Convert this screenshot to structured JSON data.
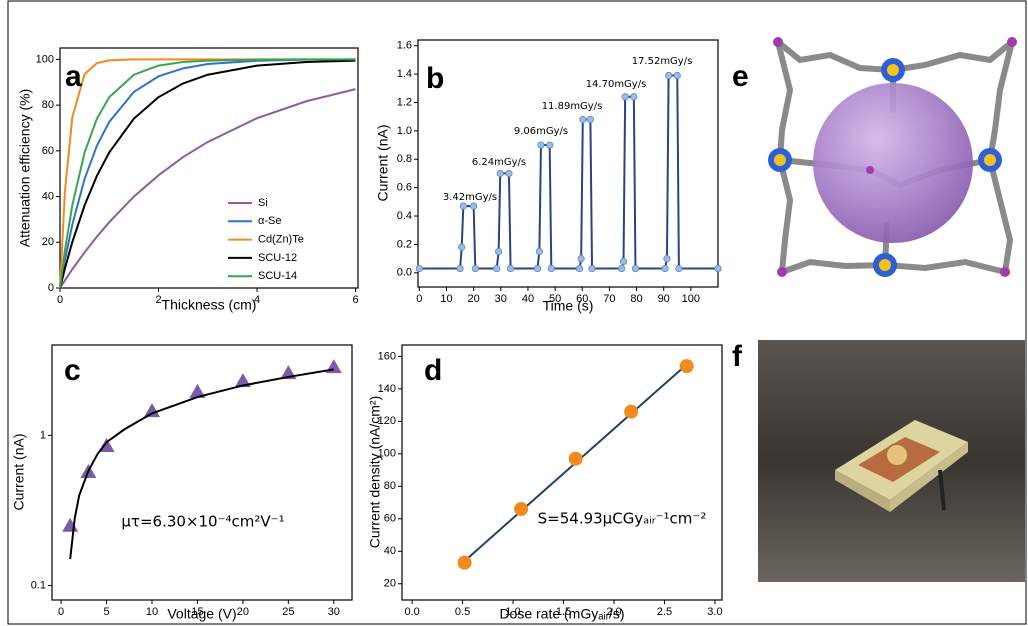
{
  "chart_data": [
    {
      "type": "line",
      "panel_label": "a",
      "xlabel": "Thickness (cm)",
      "ylabel": "Attenuation efficiency (%)",
      "x": [
        0,
        0.1,
        0.25,
        0.5,
        0.75,
        1,
        1.5,
        2,
        2.5,
        3,
        4,
        5,
        6
      ],
      "series": [
        {
          "name": "Si",
          "color": "#8e5ba6",
          "line": true,
          "values": [
            0,
            3.3,
            8.2,
            15.6,
            22.5,
            28.8,
            40.0,
            49.3,
            57.3,
            63.9,
            74.3,
            81.7,
            87.0
          ]
        },
        {
          "name": "α-Se",
          "color": "#2f74c9",
          "line": true,
          "values": [
            0,
            12.2,
            27.7,
            47.8,
            62.3,
            72.7,
            85.8,
            92.6,
            96.1,
            98.0,
            99.4,
            99.9,
            100
          ]
        },
        {
          "name": "Cd(Zn)Te",
          "color": "#f28a1e",
          "line": true,
          "values": [
            0,
            42.3,
            74.7,
            93.6,
            98.4,
            99.6,
            100,
            100,
            100,
            100,
            100,
            100,
            100
          ]
        },
        {
          "name": "SCU-12",
          "color": "#000000",
          "line": true,
          "values": [
            0,
            8.6,
            20.1,
            36.2,
            49.1,
            59.3,
            74.1,
            83.5,
            89.5,
            93.3,
            97.3,
            98.9,
            99.5
          ]
        },
        {
          "name": "SCU-14",
          "color": "#3aa64c",
          "line": true,
          "values": [
            0,
            16.5,
            36.2,
            59.3,
            74.1,
            83.5,
            93.3,
            97.3,
            98.9,
            99.5,
            99.9,
            100,
            100
          ]
        }
      ],
      "xlim": [
        0,
        6.05
      ],
      "xticks": [
        0,
        2,
        4,
        6
      ],
      "ylim": [
        0,
        105
      ],
      "yticks": [
        0,
        20,
        40,
        60,
        80,
        100
      ],
      "legend": "lower right"
    },
    {
      "type": "line",
      "panel_label": "b",
      "xlabel": "Time (s)",
      "ylabel": "Current (nA)",
      "x": [
        0,
        15,
        15.6,
        16.2,
        20,
        20.6,
        28.5,
        29.2,
        29.8,
        33,
        33.6,
        43.5,
        44.2,
        44.8,
        48,
        48.6,
        59,
        59.6,
        60.2,
        63,
        63.6,
        74.5,
        75.2,
        75.8,
        79,
        79.6,
        90.5,
        91.2,
        91.8,
        95,
        95.6,
        110
      ],
      "series": [
        {
          "color": "#27457f",
          "marker": "circle",
          "marker_color": "#9bbbe8",
          "line": true,
          "values": [
            0.03,
            0.03,
            0.18,
            0.47,
            0.47,
            0.03,
            0.03,
            0.15,
            0.7,
            0.7,
            0.03,
            0.03,
            0.15,
            0.9,
            0.9,
            0.03,
            0.03,
            0.1,
            1.08,
            1.08,
            0.03,
            0.03,
            0.08,
            1.24,
            1.24,
            0.03,
            0.03,
            0.1,
            1.39,
            1.39,
            0.03,
            0.03
          ]
        }
      ],
      "annotations": [
        "3.42mGy/s",
        "6.24mGy/s",
        "9.06mGy/s",
        "11.89mGy/s",
        "14.70mGy/s",
        "17.52mGy/s"
      ],
      "xlim": [
        -0.5,
        110
      ],
      "xticks": [
        0,
        10,
        20,
        30,
        40,
        50,
        60,
        70,
        80,
        90,
        100
      ],
      "ylim": [
        -0.1,
        1.64
      ],
      "yticks": [
        {
          "value": 0,
          "label": "0.0"
        },
        0.2,
        0.4,
        0.6,
        0.8,
        {
          "value": 1,
          "label": "1.0"
        },
        1.2,
        1.4,
        1.6
      ]
    },
    {
      "type": "scatter",
      "panel_label": "c",
      "xlabel": "Voltage (V)",
      "ylabel": "Current (nA)",
      "series": [
        {
          "color": "#7b5ba8",
          "marker": "triangle",
          "line": false,
          "x": [
            1,
            3,
            5,
            10,
            15,
            20,
            25,
            30
          ],
          "values": [
            0.25,
            0.57,
            0.85,
            1.45,
            1.95,
            2.3,
            2.6,
            2.85
          ]
        },
        {
          "color": "#000000",
          "line": true,
          "x": [
            1,
            1.5,
            2,
            3,
            4,
            5,
            7,
            10,
            15,
            20,
            25,
            30
          ],
          "values": [
            0.15,
            0.28,
            0.4,
            0.58,
            0.75,
            0.9,
            1.1,
            1.4,
            1.8,
            2.15,
            2.45,
            2.75
          ]
        }
      ],
      "annotations": [
        "μτ=6.30×10⁻⁴cm²V⁻¹"
      ],
      "xlim": [
        -1,
        32
      ],
      "xticks": [
        0,
        5,
        10,
        15,
        20,
        25,
        30
      ],
      "ylog": true,
      "ylim": [
        0.08,
        4
      ],
      "yticks": [
        0.1,
        1
      ]
    },
    {
      "type": "scatter",
      "panel_label": "d",
      "xlabel": "Dose rate (mGyₐᵢᵣ/s)",
      "ylabel": "Current density (nA/cm²)",
      "series": [
        {
          "color": "#1f3f6e",
          "line": true,
          "x": [
            0.52,
            2.72
          ],
          "values": [
            34,
            155
          ]
        },
        {
          "color": "#f28a1e",
          "marker": "circle",
          "marker_color": "#f28a1e",
          "line": false,
          "x": [
            0.52,
            1.08,
            1.62,
            2.17,
            2.72
          ],
          "values": [
            33,
            66,
            97,
            126,
            154
          ]
        }
      ],
      "annotations": [
        "S=54.93μCGyₐᵢᵣ⁻¹cm⁻²"
      ],
      "xlim": [
        -0.1,
        3.07
      ],
      "xticks": [
        {
          "value": 0,
          "label": "0.0"
        },
        0.5,
        {
          "value": 1,
          "label": "1.0"
        },
        1.5,
        {
          "value": 2,
          "label": "2.0"
        },
        2.5,
        {
          "value": 3,
          "label": "3.0"
        }
      ],
      "ylim": [
        10,
        167
      ],
      "yticks": [
        20,
        40,
        60,
        80,
        100,
        120,
        140,
        160
      ]
    }
  ],
  "images": [
    {
      "panel_label": "e"
    },
    {
      "panel_label": "f"
    }
  ]
}
